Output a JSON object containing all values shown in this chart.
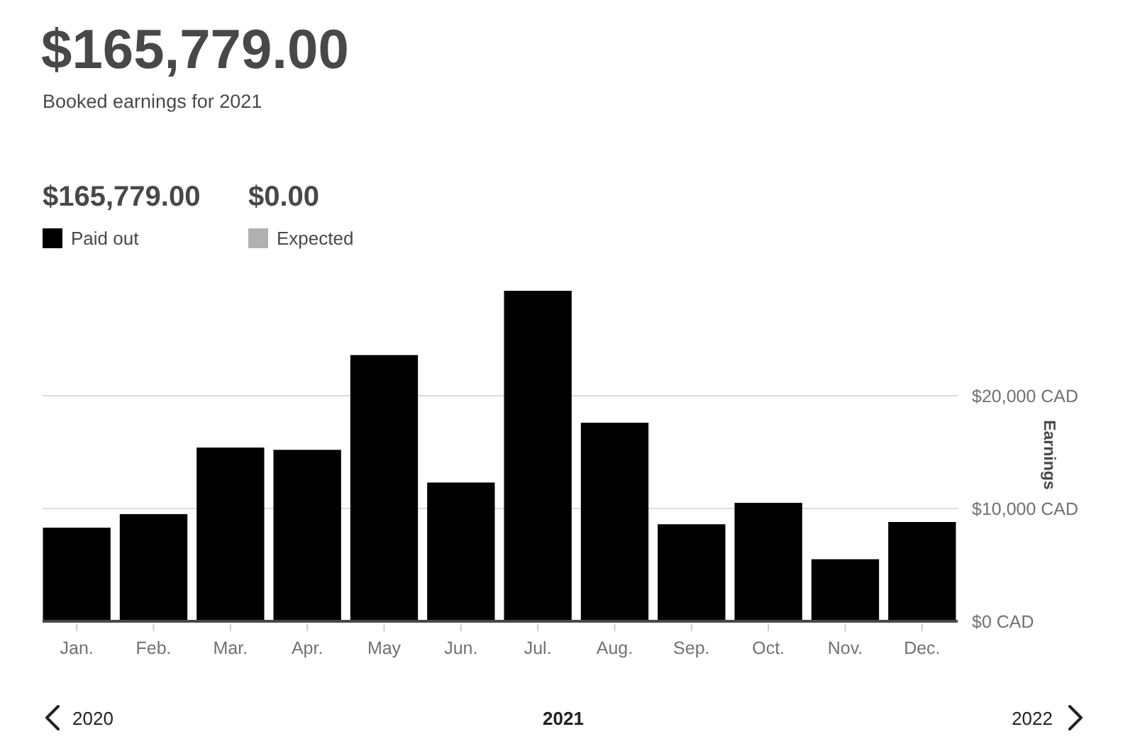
{
  "chart_data": {
    "type": "bar",
    "title": "$165,779.00",
    "subtitle": "Booked earnings for 2021",
    "categories": [
      "Jan.",
      "Feb.",
      "Mar.",
      "Apr.",
      "May",
      "Jun.",
      "Jul.",
      "Aug.",
      "Sep.",
      "Oct.",
      "Nov.",
      "Dec."
    ],
    "series": [
      {
        "name": "Paid out",
        "color": "#000000",
        "values": [
          8300,
          9500,
          15400,
          15200,
          23600,
          12300,
          29300,
          17600,
          8600,
          10500,
          5500,
          8800
        ]
      },
      {
        "name": "Expected",
        "color": "#b0b0b0",
        "values": [
          0,
          0,
          0,
          0,
          0,
          0,
          0,
          0,
          0,
          0,
          0,
          0
        ]
      }
    ],
    "stacked": true,
    "ylabel": "Earnings",
    "ylim": [
      0,
      29300
    ],
    "yticks": [
      {
        "value": 0,
        "label": "$0 CAD"
      },
      {
        "value": 10000,
        "label": "$10,000 CAD"
      },
      {
        "value": 20000,
        "label": "$20,000 CAD"
      }
    ],
    "grid": "y",
    "legend": "top left",
    "annotations": [
      "$165,779.00",
      "$0.00",
      "2020",
      "2021",
      "2022"
    ]
  }
}
